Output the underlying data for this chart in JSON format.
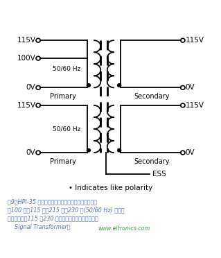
{
  "bg_color": "#ffffff",
  "line_color": "#000000",
  "caption_color": "#4472c4",
  "website_color": "#33aa33",
  "polarity_text": "• Indicates like polarity",
  "ess_text": "ESS",
  "primary_text": "Primary",
  "secondary_text": "Secondary",
  "caption_lines": [
    "图9：HPI-35 的多抽头、分体式初级和次级绕组能够承",
    "受100 伏、115 伏、215 伏和230 伏(50/60 Hz) 的输入",
    "电压，并提供115 或230 伏的输出电压。（图片来源：",
    "    Signal Transformer）"
  ],
  "website_text": "www.eltronics.com"
}
